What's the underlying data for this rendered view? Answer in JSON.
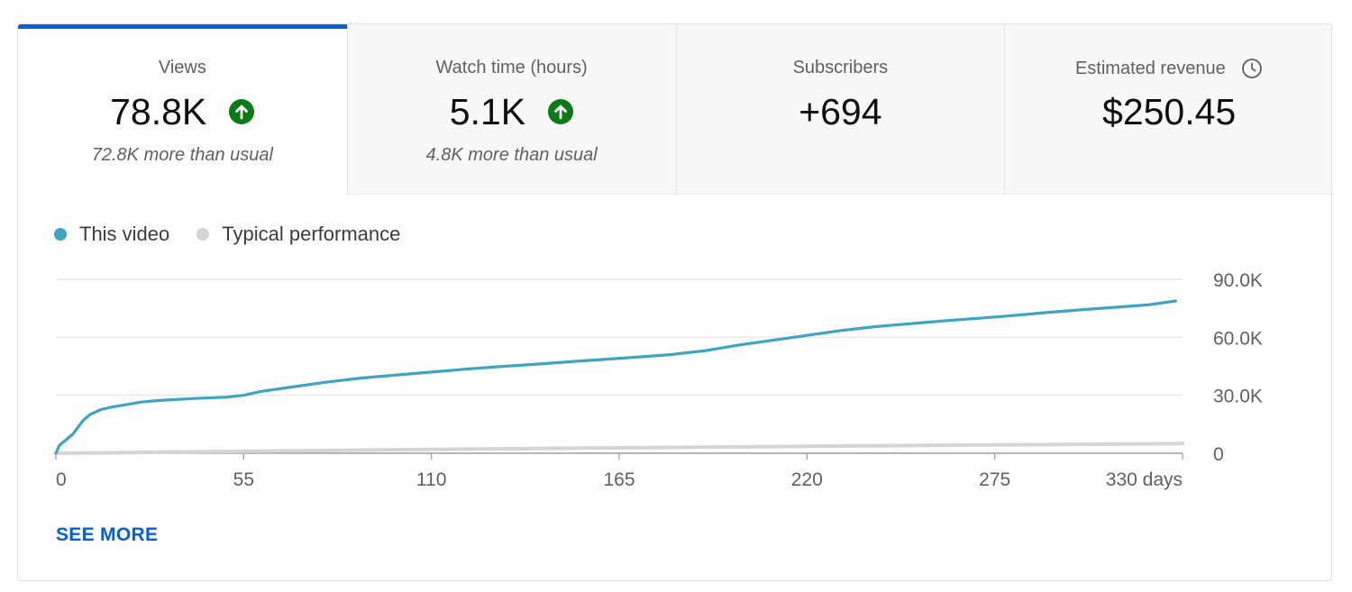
{
  "tabs": [
    {
      "label": "Views",
      "value": "78.8K",
      "note": "72.8K more than usual",
      "trend": "up"
    },
    {
      "label": "Watch time (hours)",
      "value": "5.1K",
      "note": "4.8K more than usual",
      "trend": "up"
    },
    {
      "label": "Subscribers",
      "value": "+694",
      "note": "",
      "trend": ""
    },
    {
      "label": "Estimated revenue",
      "value": "$250.45",
      "note": "",
      "trend": ""
    }
  ],
  "legend": {
    "this_video": "This video",
    "typical": "Typical performance"
  },
  "see_more": "SEE MORE",
  "colors": {
    "this_video": "#3ea4c2",
    "typical": "#d5d5d5",
    "accent": "#065fd4",
    "trend_up": "#0a7a16"
  },
  "chart_data": {
    "type": "line",
    "xlabel": "days",
    "xlim": [
      0,
      330
    ],
    "ylim": [
      0,
      90000
    ],
    "x_ticks": [
      0,
      55,
      110,
      165,
      220,
      275,
      330
    ],
    "x_tick_labels": [
      "0",
      "55",
      "110",
      "165",
      "220",
      "275",
      "330 days"
    ],
    "y_ticks": [
      0,
      30000,
      60000,
      90000
    ],
    "y_tick_labels": [
      "0",
      "30.0K",
      "60.0K",
      "90.0K"
    ],
    "series": [
      {
        "name": "This video",
        "x": [
          0,
          1,
          3,
          5,
          8,
          10,
          13,
          16,
          20,
          25,
          30,
          40,
          50,
          55,
          60,
          70,
          80,
          90,
          100,
          110,
          120,
          130,
          140,
          150,
          160,
          170,
          180,
          190,
          200,
          210,
          220,
          230,
          240,
          250,
          260,
          270,
          280,
          290,
          300,
          310,
          320,
          328
        ],
        "values": [
          0,
          4000,
          7000,
          10000,
          17000,
          20000,
          22500,
          23800,
          25000,
          26500,
          27300,
          28300,
          29000,
          30000,
          32000,
          34500,
          37000,
          39000,
          40500,
          42000,
          43500,
          44800,
          46000,
          47300,
          48500,
          49700,
          51000,
          53000,
          56000,
          58500,
          61000,
          63500,
          65500,
          67000,
          68500,
          69800,
          71200,
          72800,
          74200,
          75500,
          76800,
          78800
        ]
      },
      {
        "name": "Typical performance",
        "x": [
          0,
          55,
          110,
          165,
          220,
          275,
          330
        ],
        "values": [
          0,
          1000,
          2000,
          2800,
          3600,
          4300,
          5000
        ]
      }
    ]
  }
}
